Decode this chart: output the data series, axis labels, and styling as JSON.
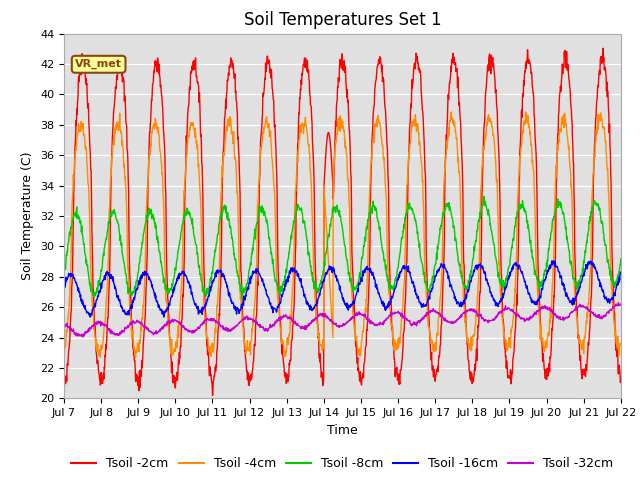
{
  "title": "Soil Temperatures Set 1",
  "xlabel": "Time",
  "ylabel": "Soil Temperature (C)",
  "ylim": [
    20,
    44
  ],
  "yticks": [
    20,
    22,
    24,
    26,
    28,
    30,
    32,
    34,
    36,
    38,
    40,
    42,
    44
  ],
  "xtick_labels": [
    "Jul 7",
    "Jul 8",
    "Jul 9",
    "Jul 10",
    "Jul 11",
    "Jul 12",
    "Jul 13",
    "Jul 14",
    "Jul 15",
    "Jul 16",
    "Jul 17",
    "Jul 18",
    "Jul 19",
    "Jul 20",
    "Jul 21",
    "Jul 22"
  ],
  "annotation_text": "VR_met",
  "series": [
    {
      "label": "Tsoil -2cm",
      "color": "#FF0000",
      "lw": 1.0
    },
    {
      "label": "Tsoil -4cm",
      "color": "#FF8C00",
      "lw": 1.0
    },
    {
      "label": "Tsoil -8cm",
      "color": "#00CC00",
      "lw": 1.0
    },
    {
      "label": "Tsoil -16cm",
      "color": "#0000FF",
      "lw": 1.0
    },
    {
      "label": "Tsoil -32cm",
      "color": "#CC00CC",
      "lw": 1.0
    }
  ],
  "background_color": "#E0E0E0",
  "fig_background": "#FFFFFF",
  "grid_color": "#FFFFFF",
  "legend_fontsize": 9,
  "title_fontsize": 12,
  "tick_fontsize": 8
}
